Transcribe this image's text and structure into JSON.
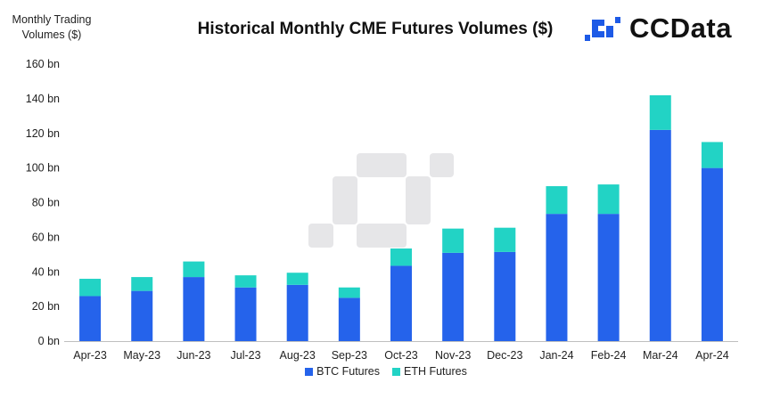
{
  "header": {
    "title": "Historical Monthly CME Futures Volumes ($)",
    "logo_text": "CCData"
  },
  "colors": {
    "btc": "#2563eb",
    "eth": "#22d3c5",
    "logo_blue": "#1d5ae6",
    "watermark": "#e6e6e8"
  },
  "chart_data": {
    "type": "bar",
    "stacked": true,
    "ylabel": "Monthly Trading Volumes ($)",
    "ylabel_lines": [
      "Monthly Trading",
      "Volumes ($)"
    ],
    "ylim": [
      0,
      160
    ],
    "yticks": [
      0,
      20,
      40,
      60,
      80,
      100,
      120,
      140,
      160
    ],
    "ytick_labels": [
      "0 bn",
      "20 bn",
      "40 bn",
      "60 bn",
      "80 bn",
      "100 bn",
      "120 bn",
      "140 bn",
      "160 bn"
    ],
    "grid": false,
    "legend_position": "bottom",
    "categories": [
      "Apr-23",
      "May-23",
      "Jun-23",
      "Jul-23",
      "Aug-23",
      "Sep-23",
      "Oct-23",
      "Nov-23",
      "Dec-23",
      "Jan-24",
      "Feb-24",
      "Mar-24",
      "Apr-24"
    ],
    "series": [
      {
        "name": "BTC Futures",
        "color": "#2563eb",
        "values": [
          26,
          29,
          37,
          31,
          32.5,
          25,
          43.5,
          51,
          51.5,
          73.5,
          73.5,
          122,
          100
        ]
      },
      {
        "name": "ETH Futures",
        "color": "#22d3c5",
        "values": [
          10,
          8,
          9,
          7,
          7,
          6,
          10,
          14,
          14,
          16,
          17,
          20,
          15
        ]
      }
    ]
  }
}
